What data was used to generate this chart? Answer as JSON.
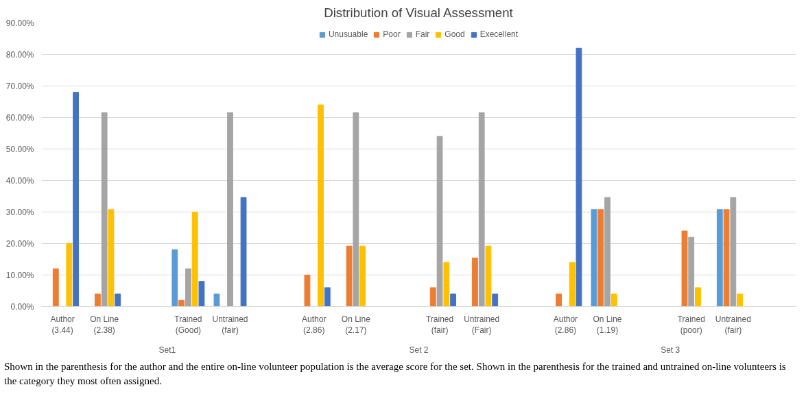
{
  "chart_data": {
    "type": "bar",
    "title": "Distribution of Visual Assessment",
    "categories": [
      "Author\n(3.44)",
      "On Line\n(2.38)",
      null,
      "Trained\n(Good)",
      "Untrained\n(fair)",
      null,
      "Author\n(2.86)",
      "On Line\n(2.17)",
      null,
      "Trained\n(fair)",
      "Untrained\n(Fair)",
      null,
      "Author\n(2.86)",
      "On Line\n(1.19)",
      null,
      "Trained\n(poor)",
      "Untrained\n(fair)",
      null
    ],
    "series": [
      {
        "name": "Unusuable",
        "color": "#5b9bd5",
        "values": [
          null,
          null,
          null,
          18,
          4,
          null,
          null,
          null,
          null,
          null,
          null,
          null,
          null,
          30.8,
          null,
          null,
          30.8,
          null
        ]
      },
      {
        "name": "Poor",
        "color": "#ed7d31",
        "values": [
          12,
          4,
          null,
          2,
          null,
          null,
          10,
          19.2,
          null,
          6,
          15.4,
          null,
          4,
          30.8,
          null,
          24,
          30.8,
          null
        ]
      },
      {
        "name": "Fair",
        "color": "#a5a5a5",
        "values": [
          null,
          61.5,
          null,
          12,
          61.5,
          null,
          null,
          61.5,
          null,
          54,
          61.5,
          null,
          null,
          34.6,
          null,
          22,
          34.6,
          null
        ]
      },
      {
        "name": "Good",
        "color": "#ffc000",
        "values": [
          20,
          30.8,
          null,
          30,
          null,
          null,
          64,
          19.2,
          null,
          14,
          19.2,
          null,
          14,
          4,
          null,
          6,
          4,
          null
        ]
      },
      {
        "name": "Execellent",
        "color": "#4472c4",
        "values": [
          68,
          4,
          null,
          8,
          34.6,
          null,
          6,
          null,
          null,
          4,
          4,
          null,
          82,
          null,
          null,
          null,
          null,
          null
        ]
      }
    ],
    "ylim": [
      0,
      90
    ],
    "yticks": [
      {
        "value": 0,
        "label": "0.00%"
      },
      {
        "value": 10,
        "label": "10.00%"
      },
      {
        "value": 20,
        "label": "20.00%"
      },
      {
        "value": 30,
        "label": "30.00%"
      },
      {
        "value": 40,
        "label": "40.00%"
      },
      {
        "value": 50,
        "label": "50.00%"
      },
      {
        "value": 60,
        "label": "60.00%"
      },
      {
        "value": 70,
        "label": "70.00%"
      },
      {
        "value": 80,
        "label": "80.00%"
      },
      {
        "value": 90,
        "label": "90.00%"
      }
    ],
    "grid": "y",
    "legend": "top",
    "annotations": [
      "Set1",
      "Set 2",
      "Set 3",
      "Shown in the parenthesis for the author and the entire on-line volunteer population is the average score for the set. Shown in the parenthesis for the trained and untrained on-line volunteers is the category they most often assigned."
    ]
  }
}
